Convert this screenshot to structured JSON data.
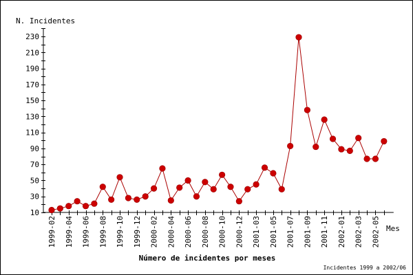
{
  "chart_data": {
    "type": "line",
    "title": "Número de incidentes por meses",
    "footnote": "Incidentes 1999 a 2002/06",
    "xlabel": "Mes",
    "ylabel": "N. Incidentes",
    "ylim": [
      10,
      240
    ],
    "yticks": [
      10,
      30,
      50,
      70,
      90,
      110,
      130,
      150,
      170,
      190,
      210,
      230
    ],
    "grid": false,
    "series_color": "#cc0000",
    "line_color": "#aa0000",
    "categories": [
      "1999-02",
      "1999-03",
      "1999-04",
      "1999-05",
      "1999-06",
      "1999-07",
      "1999-08",
      "1999-09",
      "1999-10",
      "1999-11",
      "1999-12",
      "2000-01",
      "2000-02",
      "2000-03",
      "2000-04",
      "2000-05",
      "2000-06",
      "2000-07",
      "2000-08",
      "2000-09",
      "2000-10",
      "2000-11",
      "2000-12",
      "2001-02",
      "2001-03",
      "2001-04",
      "2001-05",
      "2001-06",
      "2001-07",
      "2001-08",
      "2001-09",
      "2001-10",
      "2001-11",
      "2001-12",
      "2002-01",
      "2002-02",
      "2002-03",
      "2002-04",
      "2002-05",
      "2002-06"
    ],
    "tick_labels": [
      "1999-02",
      "1999-04",
      "1999-06",
      "1999-08",
      "1999-10",
      "1999-12",
      "2000-02",
      "2000-04",
      "2000-06",
      "2000-08",
      "2000-10",
      "2000-12",
      "2001-03",
      "2001-05",
      "2001-07",
      "2001-09",
      "2001-11",
      "2002-01",
      "2002-03",
      "2002-05"
    ],
    "values": [
      13,
      15,
      18,
      24,
      18,
      21,
      42,
      26,
      54,
      28,
      26,
      30,
      40,
      65,
      25,
      41,
      50,
      30,
      48,
      39,
      57,
      42,
      24,
      39,
      45,
      66,
      59,
      39,
      93,
      229,
      138,
      92,
      126,
      102,
      89,
      87,
      103,
      77,
      77,
      99
    ]
  }
}
